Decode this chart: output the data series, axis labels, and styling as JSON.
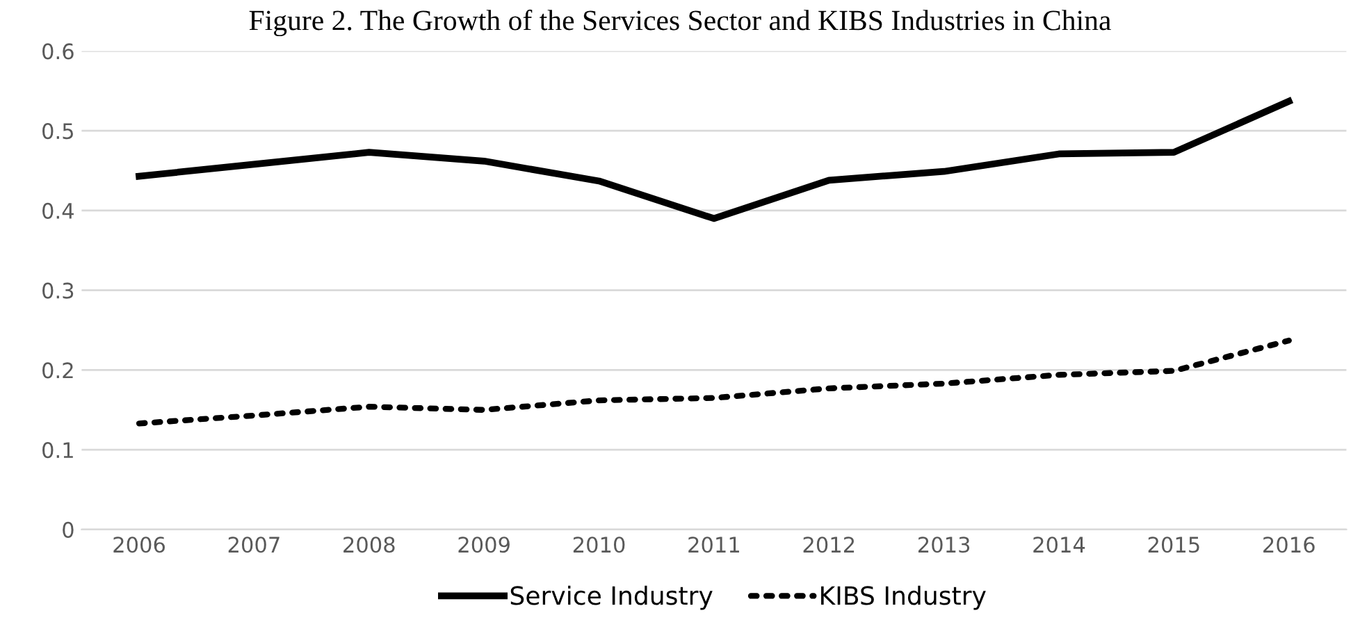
{
  "chart_data": {
    "type": "line",
    "title": "Figure 2. The Growth of the Services Sector and KIBS Industries in China",
    "categories": [
      "2006",
      "2007",
      "2008",
      "2009",
      "2010",
      "2011",
      "2012",
      "2013",
      "2014",
      "2015",
      "2016"
    ],
    "series": [
      {
        "name": "Service Industry",
        "color": "#000000",
        "line_style": "solid",
        "values": [
          0.443,
          0.458,
          0.473,
          0.462,
          0.437,
          0.39,
          0.438,
          0.449,
          0.471,
          0.473,
          0.537
        ]
      },
      {
        "name": "KIBS Industry",
        "color": "#000000",
        "line_style": "dotted",
        "values": [
          0.133,
          0.143,
          0.154,
          0.15,
          0.162,
          0.165,
          0.177,
          0.183,
          0.194,
          0.199,
          0.237
        ]
      }
    ],
    "ylim": [
      0,
      0.6
    ],
    "yticks": [
      {
        "value": 0,
        "label": "0"
      },
      0.1,
      0.2,
      0.3,
      0.4,
      0.5,
      0.6
    ],
    "grid": "y",
    "legend": "bottom",
    "marker": "none"
  }
}
